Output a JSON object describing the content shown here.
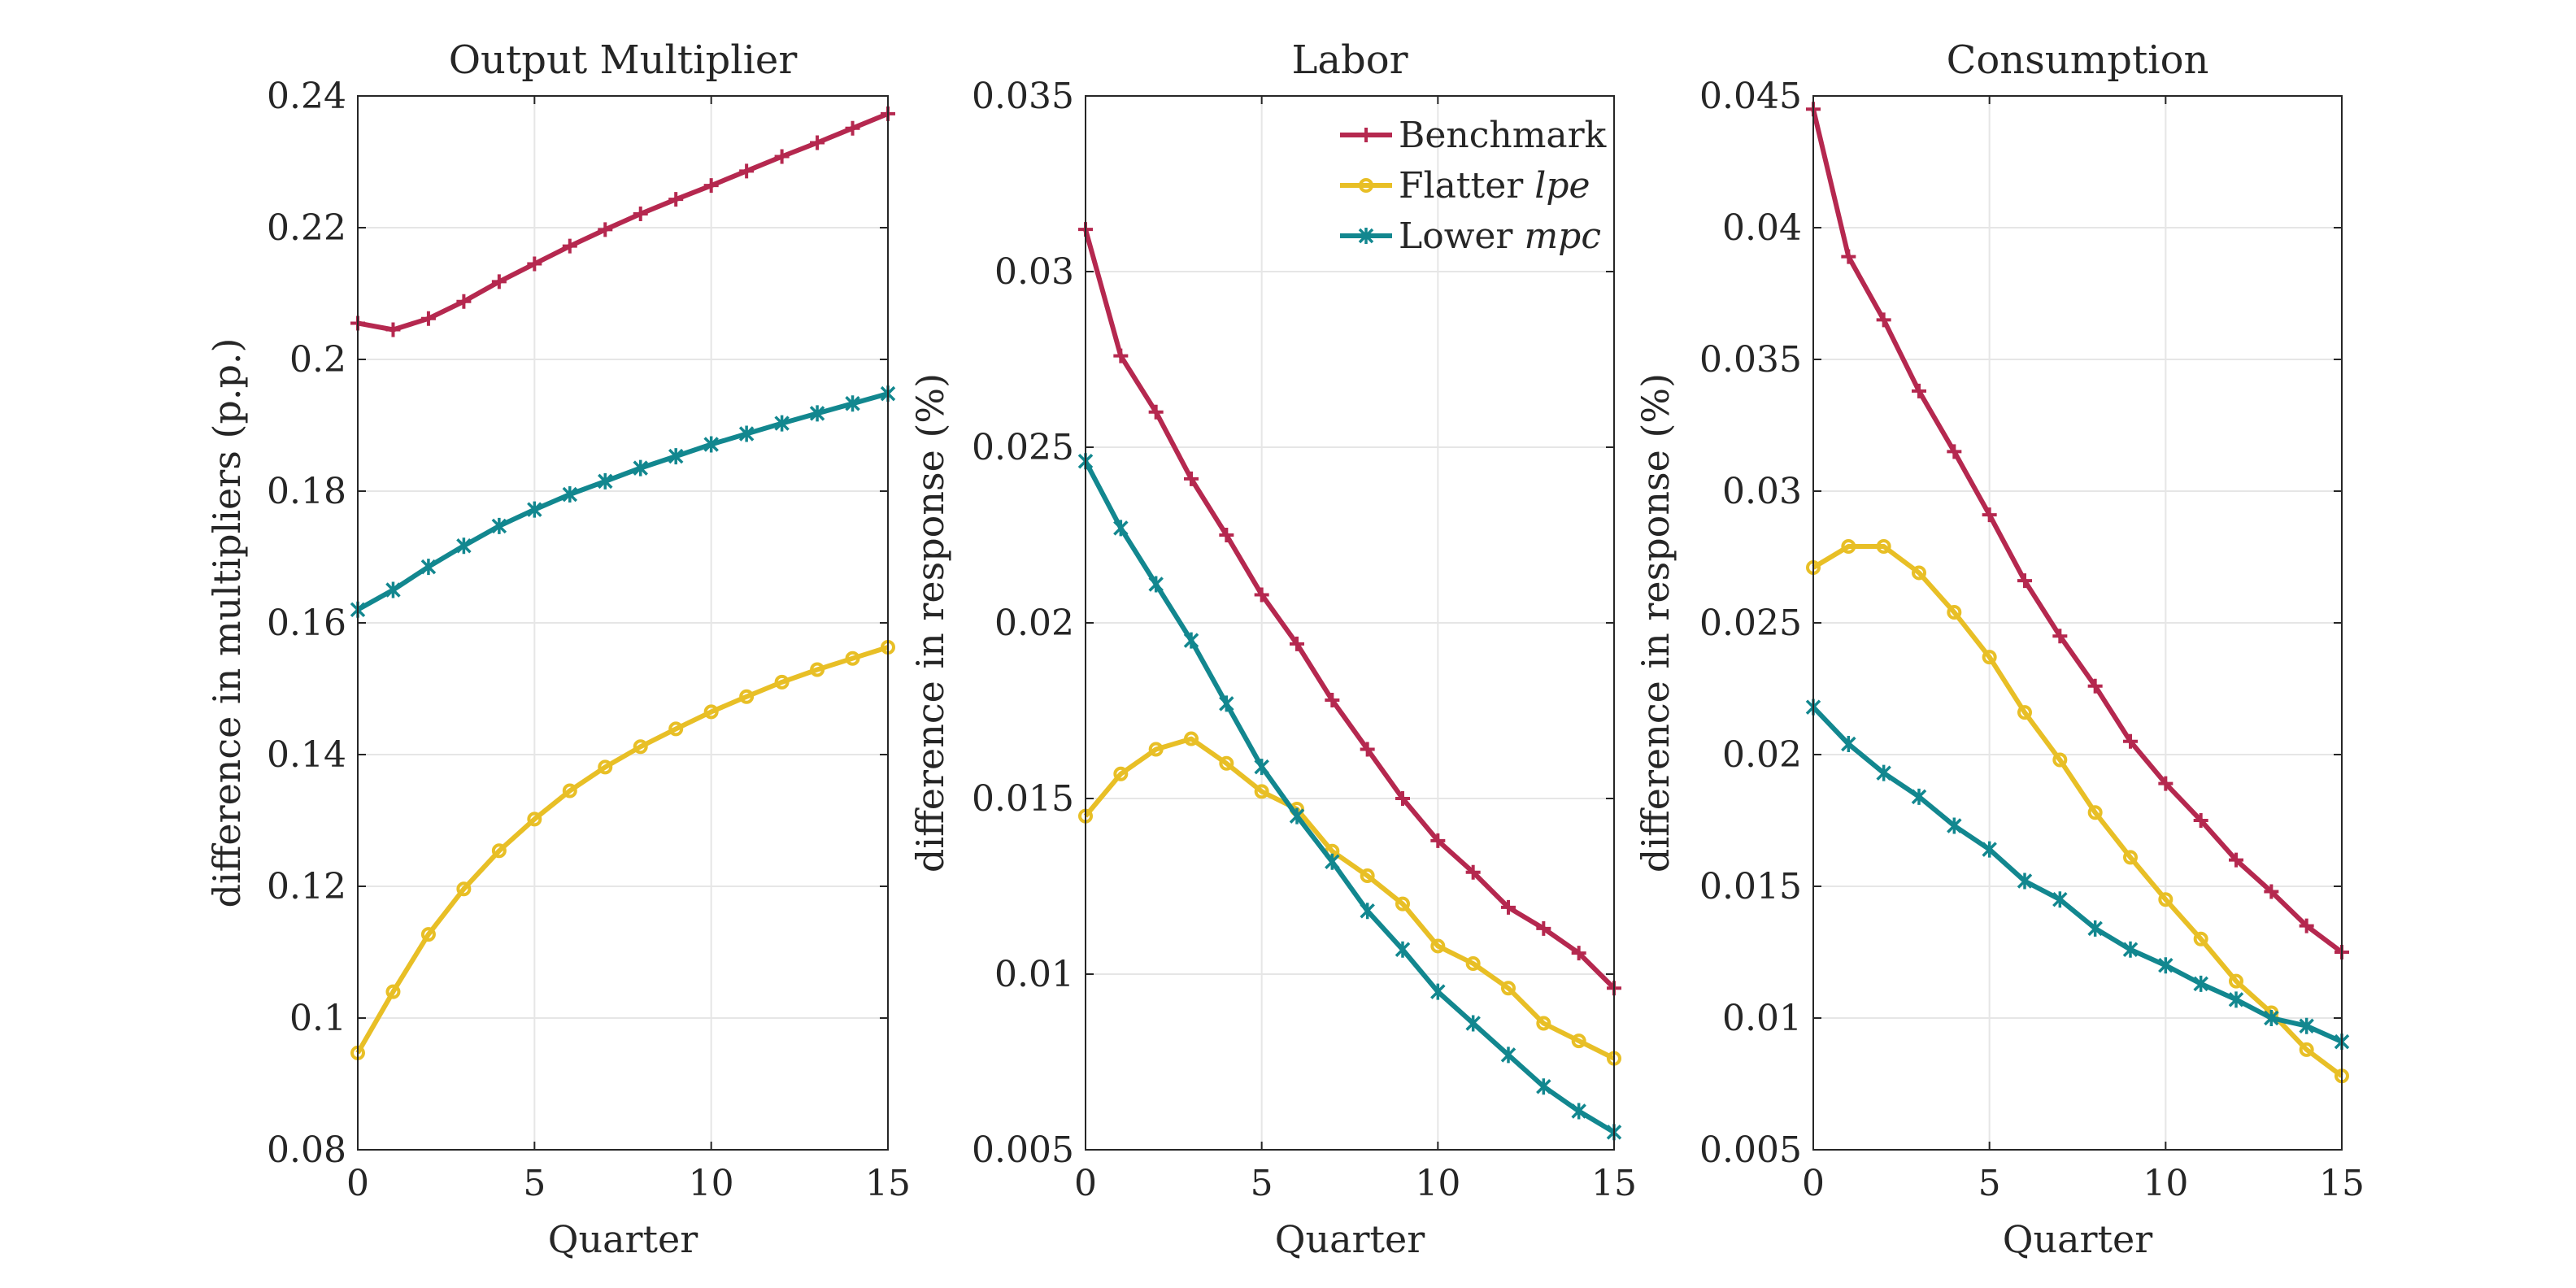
{
  "chart_data": [
    {
      "type": "line",
      "title": "Output Multiplier",
      "xlabel": "Quarter",
      "ylabel": "difference in multipliers (p.p.)",
      "xlim": [
        0,
        15
      ],
      "ylim": [
        0.08,
        0.24
      ],
      "xticks": [
        0,
        5,
        10,
        15
      ],
      "xtick_labels": [
        "0",
        "5",
        "10",
        "15"
      ],
      "yticks": [
        0.08,
        0.1,
        0.12,
        0.14,
        0.16,
        0.18,
        0.2,
        0.22,
        0.24
      ],
      "ytick_labels": [
        "0.08",
        "0.1",
        "0.12",
        "0.14",
        "0.16",
        "0.18",
        "0.2",
        "0.22",
        "0.24"
      ],
      "grid": true,
      "x": [
        0,
        1,
        2,
        3,
        4,
        5,
        6,
        7,
        8,
        9,
        10,
        11,
        12,
        13,
        14,
        15
      ],
      "series": [
        {
          "key": "benchmark",
          "color": "#b5284f",
          "marker": "plus",
          "values": [
            0.2055,
            0.2045,
            0.2062,
            0.2088,
            0.2118,
            0.2145,
            0.2172,
            0.2197,
            0.2221,
            0.2243,
            0.2264,
            0.2286,
            0.2308,
            0.2329,
            0.2351,
            0.2373
          ]
        },
        {
          "key": "lower_mpc",
          "color": "#12878f",
          "marker": "star",
          "values": [
            0.162,
            0.165,
            0.1685,
            0.1717,
            0.1747,
            0.1772,
            0.1795,
            0.1815,
            0.1835,
            0.1853,
            0.1871,
            0.1887,
            0.1903,
            0.1918,
            0.1933,
            0.1948
          ]
        },
        {
          "key": "flatter_lpe",
          "color": "#e8bf26",
          "marker": "circle",
          "values": [
            0.0947,
            0.104,
            0.1127,
            0.1196,
            0.1254,
            0.1302,
            0.1345,
            0.1381,
            0.1412,
            0.1439,
            0.1465,
            0.1488,
            0.151,
            0.1529,
            0.1546,
            0.1563
          ]
        }
      ]
    },
    {
      "type": "line",
      "title": "Labor",
      "xlabel": "Quarter",
      "ylabel": "difference in response (%)",
      "xlim": [
        0,
        15
      ],
      "ylim": [
        0.005,
        0.035
      ],
      "xticks": [
        0,
        5,
        10,
        15
      ],
      "xtick_labels": [
        "0",
        "5",
        "10",
        "15"
      ],
      "yticks": [
        0.005,
        0.01,
        0.015,
        0.02,
        0.025,
        0.03,
        0.035
      ],
      "ytick_labels": [
        "0.005",
        "0.01",
        "0.015",
        "0.02",
        "0.025",
        "0.03",
        "0.035"
      ],
      "grid": true,
      "legend_position": "top-right",
      "x": [
        0,
        1,
        2,
        3,
        4,
        5,
        6,
        7,
        8,
        9,
        10,
        11,
        12,
        13,
        14,
        15
      ],
      "series": [
        {
          "key": "benchmark",
          "color": "#b5284f",
          "marker": "plus",
          "values": [
            0.0312,
            0.0276,
            0.026,
            0.0241,
            0.0225,
            0.0208,
            0.0194,
            0.0178,
            0.0164,
            0.015,
            0.0138,
            0.0129,
            0.0119,
            0.0113,
            0.0106,
            0.0096
          ]
        },
        {
          "key": "flatter_lpe",
          "color": "#e8bf26",
          "marker": "circle",
          "values": [
            0.0145,
            0.0157,
            0.0164,
            0.0167,
            0.016,
            0.0152,
            0.0147,
            0.0135,
            0.0128,
            0.012,
            0.0108,
            0.0103,
            0.0096,
            0.0086,
            0.0081,
            0.0076
          ]
        },
        {
          "key": "lower_mpc",
          "color": "#12878f",
          "marker": "star",
          "values": [
            0.0246,
            0.0227,
            0.0211,
            0.0195,
            0.0177,
            0.0159,
            0.0145,
            0.0132,
            0.0118,
            0.0107,
            0.0095,
            0.0086,
            0.0077,
            0.0068,
            0.0061,
            0.0055
          ]
        }
      ],
      "legend": [
        {
          "key": "benchmark",
          "text": "Benchmark",
          "italic": ""
        },
        {
          "key": "flatter_lpe",
          "text": "Flatter ",
          "italic": "lpe"
        },
        {
          "key": "lower_mpc",
          "text": "Lower ",
          "italic": "mpc"
        }
      ]
    },
    {
      "type": "line",
      "title": "Consumption",
      "xlabel": "Quarter",
      "ylabel": "difference in response (%)",
      "xlim": [
        0,
        15
      ],
      "ylim": [
        0.005,
        0.045
      ],
      "xticks": [
        0,
        5,
        10,
        15
      ],
      "xtick_labels": [
        "0",
        "5",
        "10",
        "15"
      ],
      "yticks": [
        0.005,
        0.01,
        0.015,
        0.02,
        0.025,
        0.03,
        0.035,
        0.04,
        0.045
      ],
      "ytick_labels": [
        "0.005",
        "0.01",
        "0.015",
        "0.02",
        "0.025",
        "0.03",
        "0.035",
        "0.04",
        "0.045"
      ],
      "grid": true,
      "x": [
        0,
        1,
        2,
        3,
        4,
        5,
        6,
        7,
        8,
        9,
        10,
        11,
        12,
        13,
        14,
        15
      ],
      "series": [
        {
          "key": "benchmark",
          "color": "#b5284f",
          "marker": "plus",
          "values": [
            0.0445,
            0.0389,
            0.0365,
            0.0338,
            0.0315,
            0.0291,
            0.0266,
            0.0245,
            0.0226,
            0.0205,
            0.0189,
            0.0175,
            0.016,
            0.0148,
            0.0135,
            0.0125
          ]
        },
        {
          "key": "flatter_lpe",
          "color": "#e8bf26",
          "marker": "circle",
          "values": [
            0.0271,
            0.0279,
            0.0279,
            0.0269,
            0.0254,
            0.0237,
            0.0216,
            0.0198,
            0.0178,
            0.0161,
            0.0145,
            0.013,
            0.0114,
            0.0102,
            0.0088,
            0.0078
          ]
        },
        {
          "key": "lower_mpc",
          "color": "#12878f",
          "marker": "star",
          "values": [
            0.0218,
            0.0204,
            0.0193,
            0.0184,
            0.0173,
            0.0164,
            0.0152,
            0.0145,
            0.0134,
            0.0126,
            0.012,
            0.0113,
            0.0107,
            0.01,
            0.0097,
            0.0091
          ]
        }
      ]
    }
  ]
}
